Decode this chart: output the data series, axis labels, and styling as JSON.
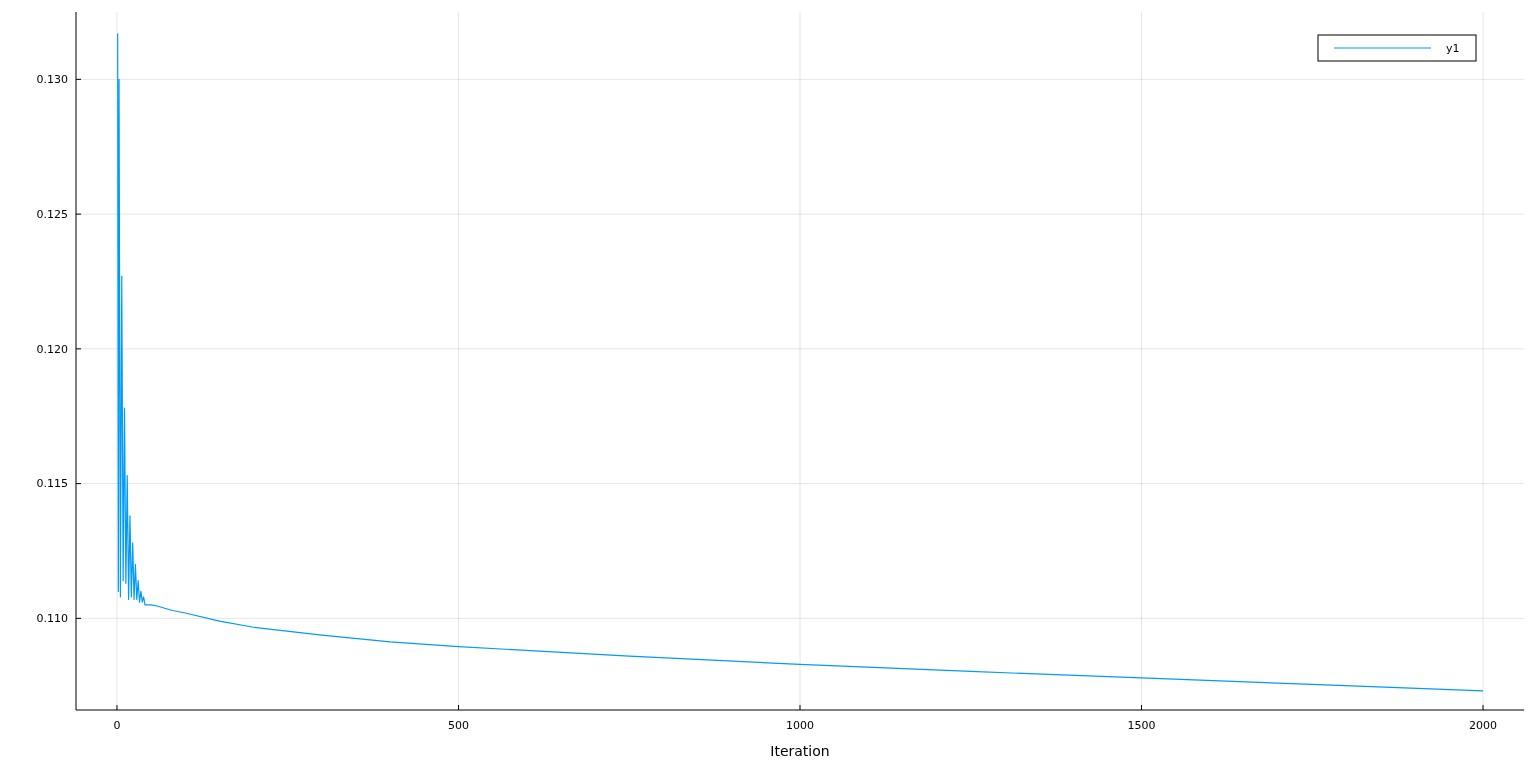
{
  "chart_data": {
    "type": "line",
    "xlabel": "Iteration",
    "xlim": [
      -60,
      2060
    ],
    "ylim": [
      0.1066,
      0.1325
    ],
    "xticks": [
      0,
      500,
      1000,
      1500,
      2000
    ],
    "yticks": [
      {
        "value": 0.11,
        "label": "0.110"
      },
      {
        "value": 0.115,
        "label": "0.115"
      },
      {
        "value": 0.12,
        "label": "0.120"
      },
      {
        "value": 0.125,
        "label": "0.125"
      },
      {
        "value": 0.13,
        "label": "0.130"
      }
    ],
    "grid": true,
    "legend": "top right",
    "series": [
      {
        "name": "y1",
        "color": "#009af9",
        "x": [
          1,
          2,
          3,
          5,
          7,
          9,
          11,
          13,
          15,
          17,
          19,
          21,
          23,
          25,
          27,
          29,
          31,
          33,
          35,
          37,
          39,
          41,
          50,
          60,
          80,
          100,
          150,
          200,
          300,
          400,
          500,
          750,
          1000,
          1250,
          1500,
          1750,
          2000
        ],
        "values": [
          0.1317,
          0.111,
          0.13,
          0.1108,
          0.1227,
          0.1114,
          0.1178,
          0.1113,
          0.1153,
          0.1107,
          0.1138,
          0.1108,
          0.1128,
          0.1107,
          0.112,
          0.1107,
          0.1114,
          0.1106,
          0.111,
          0.1106,
          0.1108,
          0.1105,
          0.1105,
          0.11045,
          0.1103,
          0.1102,
          0.1099,
          0.10967,
          0.10938,
          0.10913,
          0.10895,
          0.1086,
          0.10829,
          0.10803,
          0.10779,
          0.10755,
          0.10731
        ]
      }
    ]
  }
}
